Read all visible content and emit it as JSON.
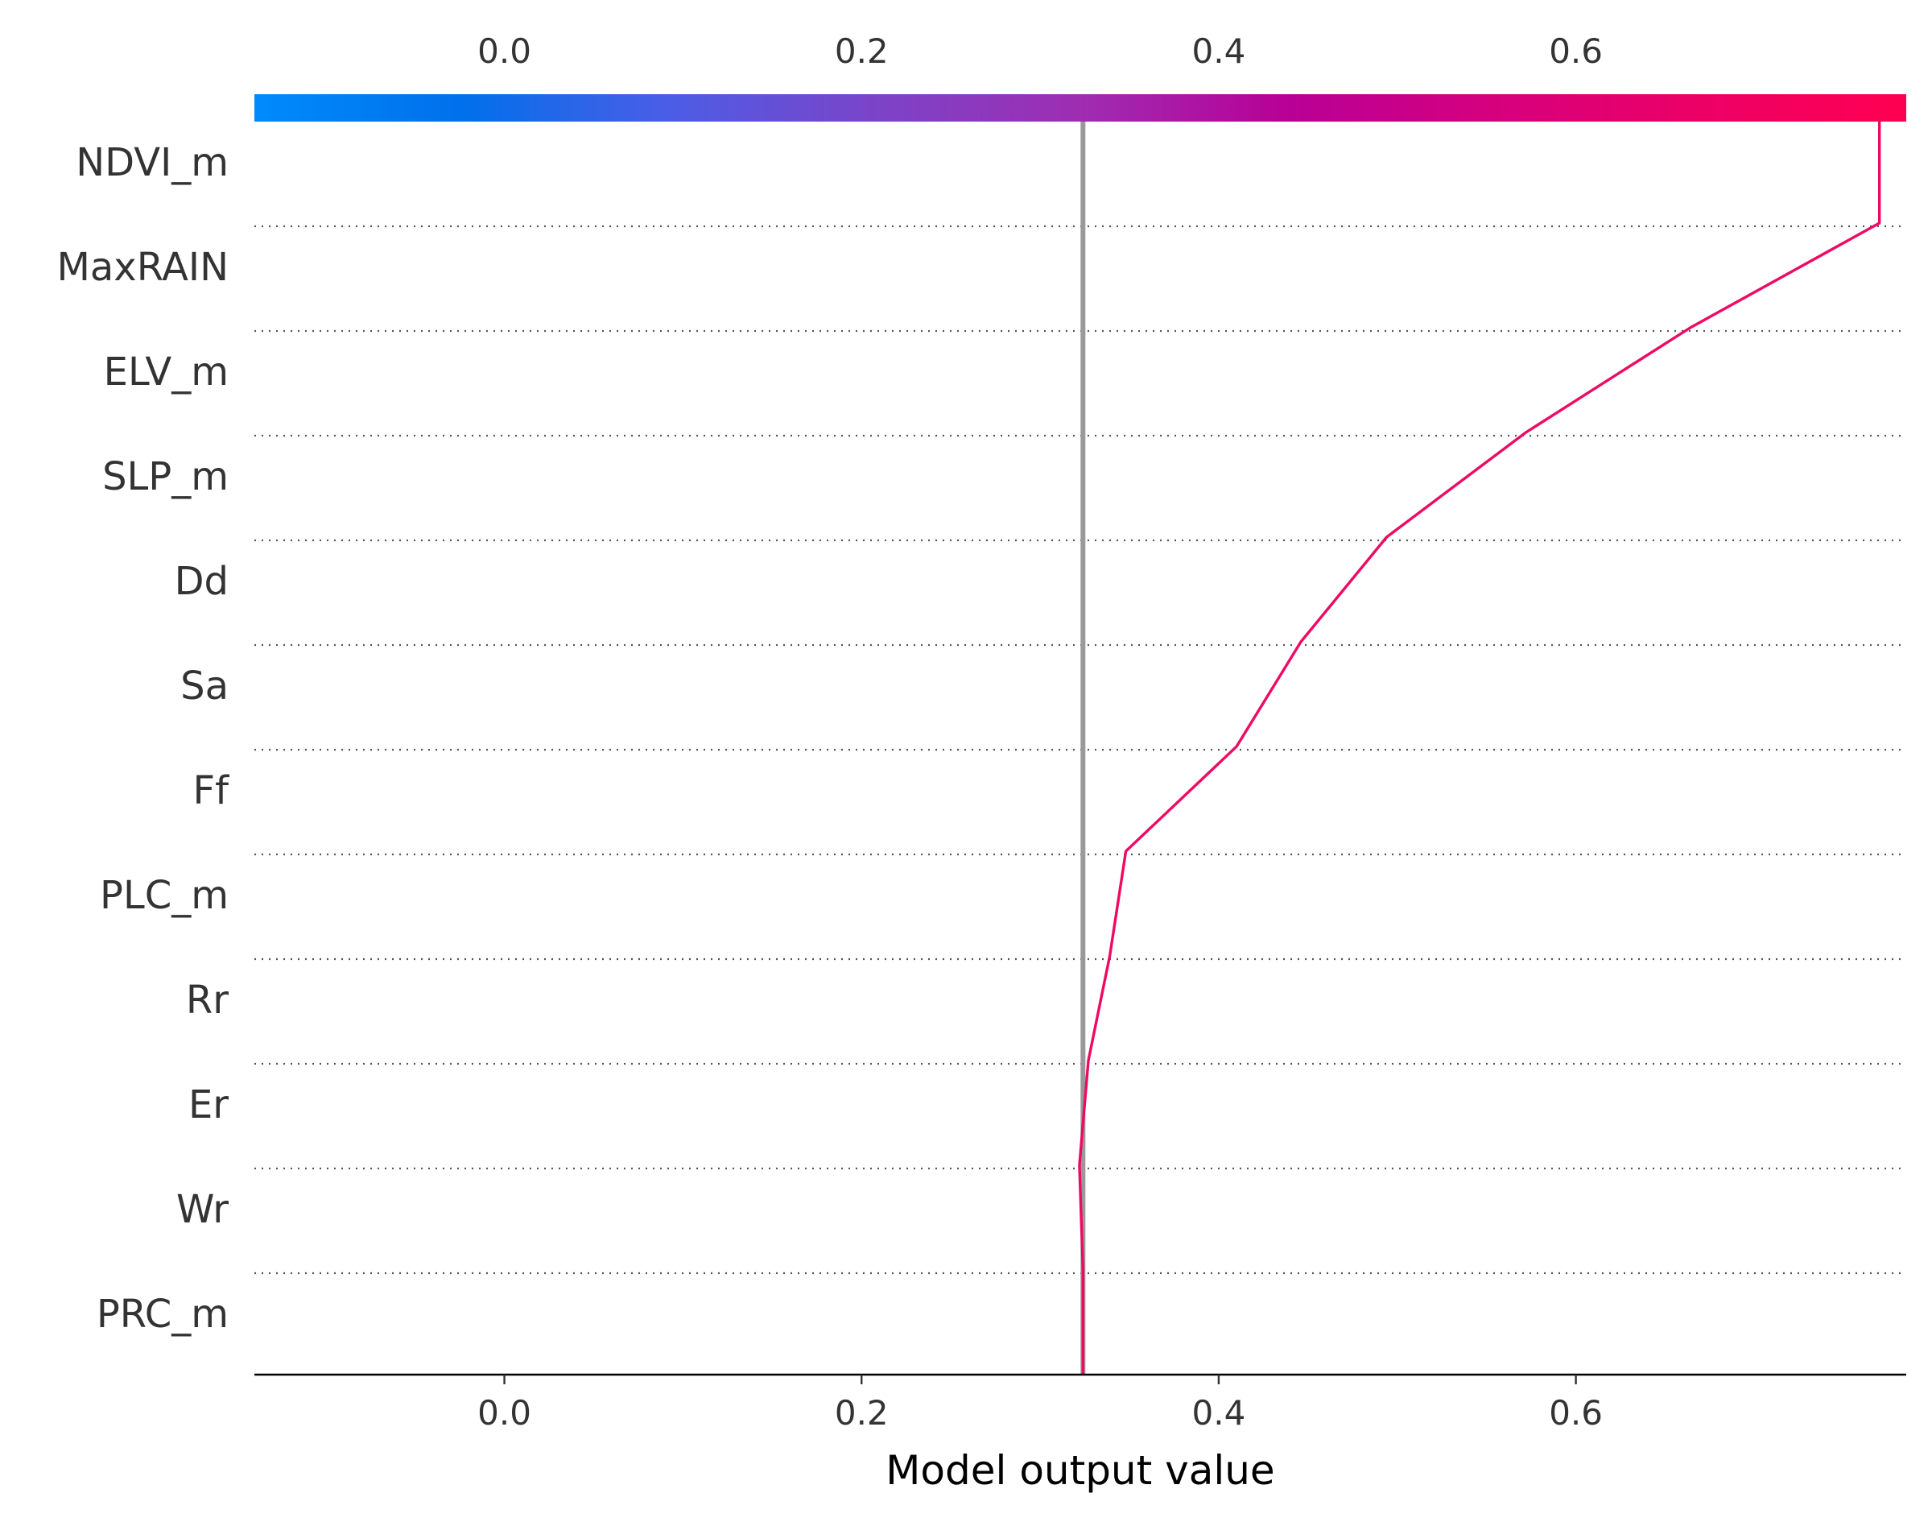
{
  "chart_data": {
    "type": "line",
    "subtype": "shap-decision-plot",
    "xlabel": "Model output value",
    "xlim": [
      -0.14,
      0.785
    ],
    "xticks": [
      0.0,
      0.2,
      0.4,
      0.6
    ],
    "xtick_labels": [
      "0.0",
      "0.2",
      "0.4",
      "0.6"
    ],
    "base_value": 0.324,
    "features": [
      "NDVI_m",
      "MaxRAIN",
      "ELV_m",
      "SLP_m",
      "Dd",
      "Sa",
      "Ff",
      "PLC_m",
      "Rr",
      "Er",
      "Wr",
      "PRC_m"
    ],
    "cumulative_output": [
      0.324,
      0.324,
      0.322,
      0.327,
      0.339,
      0.348,
      0.41,
      0.446,
      0.494,
      0.572,
      0.664,
      0.77
    ],
    "final_output": 0.77,
    "colorbar": {
      "colors": [
        "#008bfb",
        "#0070eb",
        "#4b5de6",
        "#7b44c8",
        "#9e2db2",
        "#b80096",
        "#d6007e",
        "#ec0066",
        "#ff0051"
      ],
      "tick_labels": [
        "0.0",
        "0.2",
        "0.4",
        "0.6"
      ]
    },
    "line_color": "#ee0a63",
    "base_line_color": "#999999",
    "grid": "dotted-horizontal"
  }
}
